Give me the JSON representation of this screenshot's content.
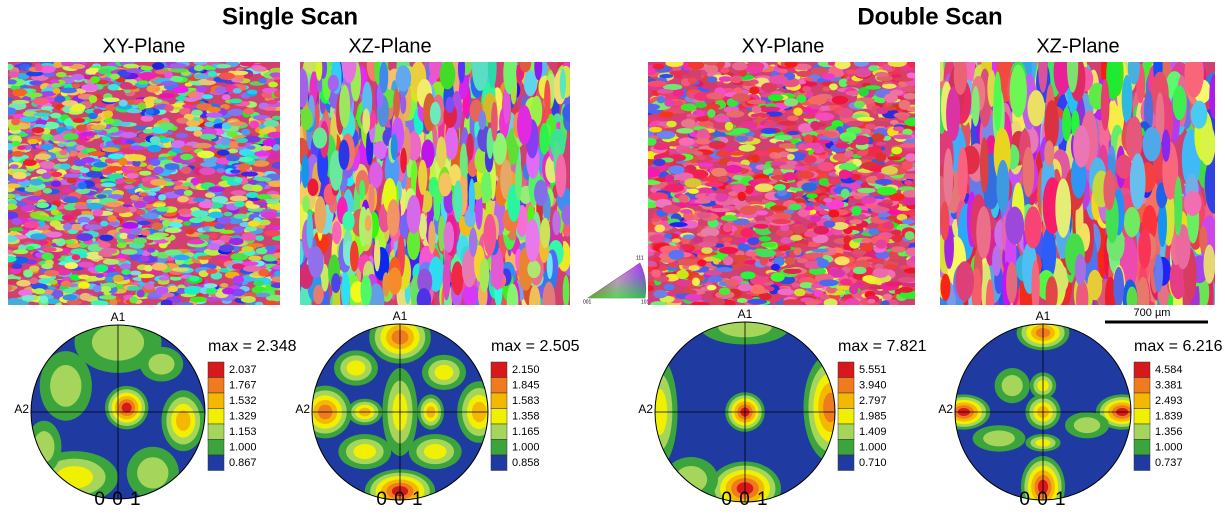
{
  "titles": [
    "Single Scan",
    "Double Scan"
  ],
  "panels": [
    {
      "plane": "XY-Plane",
      "pole_figure": {
        "top_label": "A1",
        "left_label": "A2",
        "max_label": "max = 2.348",
        "legend": [
          "2.037",
          "1.767",
          "1.532",
          "1.329",
          "1.153",
          "1.000",
          "0.867"
        ],
        "bottom_label": "0 0 1"
      }
    },
    {
      "plane": "XZ-Plane",
      "pole_figure": {
        "top_label": "A1",
        "left_label": "A2",
        "max_label": "max = 2.505",
        "legend": [
          "2.150",
          "1.845",
          "1.583",
          "1.358",
          "1.165",
          "1.000",
          "0.858"
        ],
        "bottom_label": "0 0 1"
      }
    },
    {
      "plane": "XY-Plane",
      "pole_figure": {
        "top_label": "A1",
        "left_label": "A2",
        "max_label": "max = 7.821",
        "legend": [
          "5.551",
          "3.940",
          "2.797",
          "1.985",
          "1.409",
          "1.000",
          "0.710"
        ],
        "bottom_label": "0 0 1"
      }
    },
    {
      "plane": "XZ-Plane",
      "pole_figure": {
        "top_label": "A1",
        "left_label": "A2",
        "max_label": "max = 6.216",
        "legend": [
          "4.584",
          "3.381",
          "2.493",
          "1.839",
          "1.356",
          "1.000",
          "0.737"
        ],
        "bottom_label": "0 0 1"
      }
    }
  ],
  "scale_bar": "700 µm",
  "ipf_key": [
    "001",
    "101",
    "111"
  ]
}
